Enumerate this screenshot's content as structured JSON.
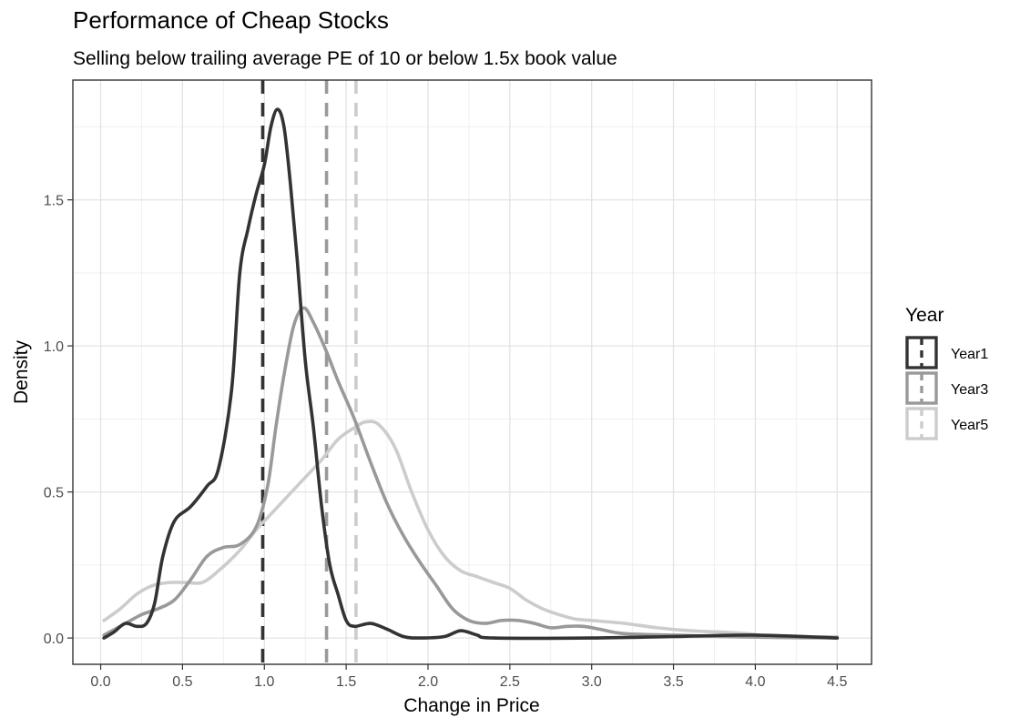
{
  "chart_data": {
    "type": "line",
    "title": "Performance of Cheap Stocks",
    "subtitle": "Selling below trailing average PE of 10 or below 1.5x book value",
    "xlabel": "Change in Price",
    "ylabel": "Density",
    "xlim": [
      -0.17,
      4.71
    ],
    "ylim": [
      -0.09,
      1.91
    ],
    "x_ticks": [
      0.0,
      0.5,
      1.0,
      1.5,
      2.0,
      2.5,
      3.0,
      3.5,
      4.0,
      4.5
    ],
    "x_tick_labels": [
      "0.0",
      "0.5",
      "1.0",
      "1.5",
      "2.0",
      "2.5",
      "3.0",
      "3.5",
      "4.0",
      "4.5"
    ],
    "y_ticks": [
      0.0,
      0.5,
      1.0,
      1.5
    ],
    "y_tick_labels": [
      "0.0",
      "0.5",
      "1.0",
      "1.5"
    ],
    "grid": true,
    "legend": {
      "title": "Year",
      "position": "right"
    },
    "series": [
      {
        "name": "Year1",
        "color": "#333333",
        "mean": 0.99,
        "points": [
          [
            0.02,
            0.0
          ],
          [
            0.08,
            0.02
          ],
          [
            0.15,
            0.05
          ],
          [
            0.22,
            0.04
          ],
          [
            0.28,
            0.05
          ],
          [
            0.33,
            0.12
          ],
          [
            0.38,
            0.28
          ],
          [
            0.45,
            0.4
          ],
          [
            0.55,
            0.45
          ],
          [
            0.65,
            0.52
          ],
          [
            0.72,
            0.58
          ],
          [
            0.8,
            0.85
          ],
          [
            0.85,
            1.25
          ],
          [
            0.9,
            1.4
          ],
          [
            0.95,
            1.52
          ],
          [
            1.0,
            1.62
          ],
          [
            1.04,
            1.75
          ],
          [
            1.08,
            1.81
          ],
          [
            1.12,
            1.75
          ],
          [
            1.16,
            1.55
          ],
          [
            1.2,
            1.3
          ],
          [
            1.25,
            0.95
          ],
          [
            1.3,
            0.72
          ],
          [
            1.35,
            0.45
          ],
          [
            1.4,
            0.25
          ],
          [
            1.45,
            0.15
          ],
          [
            1.5,
            0.06
          ],
          [
            1.55,
            0.04
          ],
          [
            1.65,
            0.05
          ],
          [
            1.75,
            0.03
          ],
          [
            1.85,
            0.005
          ],
          [
            1.95,
            0.0
          ],
          [
            2.1,
            0.005
          ],
          [
            2.2,
            0.025
          ],
          [
            2.3,
            0.01
          ],
          [
            2.4,
            0.0
          ],
          [
            3.0,
            0.0
          ],
          [
            3.5,
            0.005
          ],
          [
            4.0,
            0.01
          ],
          [
            4.5,
            0.0
          ]
        ]
      },
      {
        "name": "Year3",
        "color": "#999999",
        "mean": 1.38,
        "points": [
          [
            0.02,
            0.01
          ],
          [
            0.12,
            0.04
          ],
          [
            0.25,
            0.08
          ],
          [
            0.35,
            0.1
          ],
          [
            0.45,
            0.13
          ],
          [
            0.55,
            0.2
          ],
          [
            0.65,
            0.28
          ],
          [
            0.75,
            0.31
          ],
          [
            0.85,
            0.32
          ],
          [
            0.95,
            0.38
          ],
          [
            1.02,
            0.52
          ],
          [
            1.07,
            0.72
          ],
          [
            1.12,
            0.9
          ],
          [
            1.18,
            1.07
          ],
          [
            1.24,
            1.13
          ],
          [
            1.3,
            1.08
          ],
          [
            1.38,
            0.98
          ],
          [
            1.45,
            0.88
          ],
          [
            1.55,
            0.75
          ],
          [
            1.65,
            0.6
          ],
          [
            1.75,
            0.46
          ],
          [
            1.85,
            0.35
          ],
          [
            1.95,
            0.26
          ],
          [
            2.05,
            0.18
          ],
          [
            2.15,
            0.1
          ],
          [
            2.25,
            0.06
          ],
          [
            2.35,
            0.05
          ],
          [
            2.45,
            0.06
          ],
          [
            2.55,
            0.06
          ],
          [
            2.65,
            0.05
          ],
          [
            2.75,
            0.035
          ],
          [
            2.85,
            0.04
          ],
          [
            2.95,
            0.04
          ],
          [
            3.05,
            0.03
          ],
          [
            3.2,
            0.015
          ],
          [
            3.5,
            0.01
          ],
          [
            3.8,
            0.005
          ],
          [
            4.1,
            0.002
          ],
          [
            4.5,
            0.0
          ]
        ]
      },
      {
        "name": "Year5",
        "color": "#cccccc",
        "mean": 1.56,
        "points": [
          [
            0.02,
            0.06
          ],
          [
            0.12,
            0.1
          ],
          [
            0.22,
            0.15
          ],
          [
            0.32,
            0.18
          ],
          [
            0.42,
            0.19
          ],
          [
            0.52,
            0.19
          ],
          [
            0.62,
            0.19
          ],
          [
            0.72,
            0.23
          ],
          [
            0.85,
            0.3
          ],
          [
            0.95,
            0.37
          ],
          [
            1.05,
            0.43
          ],
          [
            1.15,
            0.49
          ],
          [
            1.25,
            0.55
          ],
          [
            1.35,
            0.61
          ],
          [
            1.45,
            0.68
          ],
          [
            1.55,
            0.72
          ],
          [
            1.62,
            0.74
          ],
          [
            1.7,
            0.73
          ],
          [
            1.8,
            0.65
          ],
          [
            1.9,
            0.5
          ],
          [
            2.0,
            0.37
          ],
          [
            2.1,
            0.28
          ],
          [
            2.2,
            0.23
          ],
          [
            2.3,
            0.21
          ],
          [
            2.4,
            0.19
          ],
          [
            2.5,
            0.17
          ],
          [
            2.6,
            0.13
          ],
          [
            2.7,
            0.1
          ],
          [
            2.8,
            0.08
          ],
          [
            2.9,
            0.065
          ],
          [
            3.0,
            0.06
          ],
          [
            3.2,
            0.05
          ],
          [
            3.4,
            0.035
          ],
          [
            3.6,
            0.025
          ],
          [
            3.8,
            0.02
          ],
          [
            3.95,
            0.015
          ],
          [
            4.1,
            0.005
          ],
          [
            4.3,
            0.003
          ],
          [
            4.5,
            0.005
          ]
        ]
      }
    ]
  }
}
